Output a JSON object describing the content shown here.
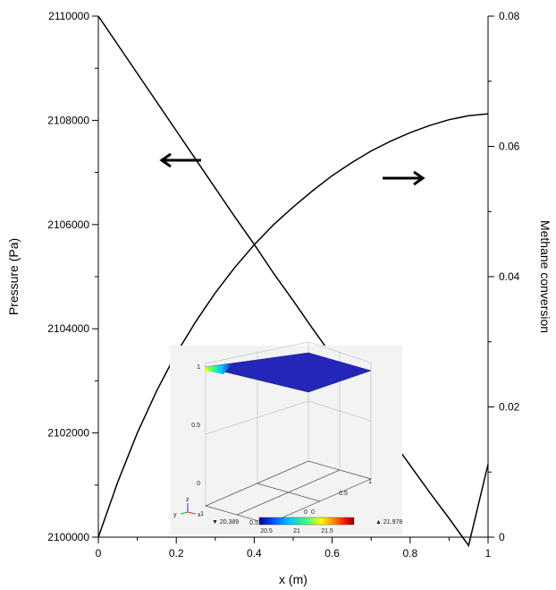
{
  "chart_data": {
    "type": "line",
    "title": "",
    "xlabel": "x (m)",
    "ylabel_left": "Pressure (Pa)",
    "ylabel_right": "Methane conversion",
    "xlim": [
      0,
      1
    ],
    "ylim_left": [
      2100000,
      2110000
    ],
    "ylim_right": [
      0,
      0.08
    ],
    "x_ticks": [
      "0",
      "0.2",
      "0.4",
      "0.6",
      "0.8",
      "1"
    ],
    "y_left_ticks": [
      "2100000",
      "2102000",
      "2104000",
      "2106000",
      "2108000",
      "2110000"
    ],
    "y_right_ticks": [
      "0",
      "0.02",
      "0.04",
      "0.06",
      "0.08"
    ],
    "grid": false,
    "series": [
      {
        "axis": "left",
        "color": "#000000",
        "x": [
          0,
          0.05,
          0.1,
          0.15,
          0.2,
          0.25,
          0.3,
          0.35,
          0.4,
          0.45,
          0.5,
          0.55,
          0.6,
          0.65,
          0.7,
          0.75,
          0.8,
          0.85,
          0.9,
          0.95,
          1
        ],
        "y": [
          2110000,
          2109450,
          2108900,
          2108350,
          2107800,
          2107250,
          2106700,
          2106150,
          2105620,
          2105060,
          2104540,
          2104000,
          2103480,
          2102950,
          2102430,
          2101900,
          2101380,
          2100860,
          2100360,
          2099840,
          2101400
        ]
      },
      {
        "axis": "right",
        "color": "#000000",
        "x": [
          0,
          0.05,
          0.1,
          0.15,
          0.2,
          0.25,
          0.3,
          0.35,
          0.4,
          0.45,
          0.5,
          0.55,
          0.6,
          0.65,
          0.7,
          0.75,
          0.8,
          0.85,
          0.9,
          0.95,
          1
        ],
        "y": [
          0,
          0.0085,
          0.016,
          0.0225,
          0.0282,
          0.0331,
          0.0375,
          0.0414,
          0.0449,
          0.048,
          0.0507,
          0.0532,
          0.0555,
          0.0575,
          0.0593,
          0.0608,
          0.0621,
          0.0632,
          0.0641,
          0.0647,
          0.065
        ]
      }
    ],
    "annotations": [
      {
        "type": "arrow",
        "direction": "left",
        "meaning": "pressure curve uses left axis"
      },
      {
        "type": "arrow",
        "direction": "right",
        "meaning": "conversion curve uses right axis"
      }
    ],
    "inset": {
      "type": "3d-surface-plot",
      "axis_ticks_z": [
        "1",
        "0.5",
        "0"
      ],
      "axis_ticks_x": [
        "1",
        "0.5",
        "0"
      ],
      "axis_ticks_y": [
        "0",
        "0.5",
        "1"
      ],
      "triad_labels": [
        "z",
        "y",
        "x"
      ],
      "colorbar_min": "20.389",
      "colorbar_max": "21.978",
      "colorbar_ticks": [
        "20.5",
        "21",
        "21.5"
      ],
      "colormap": [
        "#0000a0",
        "#0050ff",
        "#00c8ff",
        "#40ff80",
        "#ffff00",
        "#ff8000",
        "#ff0000",
        "#800000"
      ],
      "surface_color": "#2326b8"
    }
  }
}
